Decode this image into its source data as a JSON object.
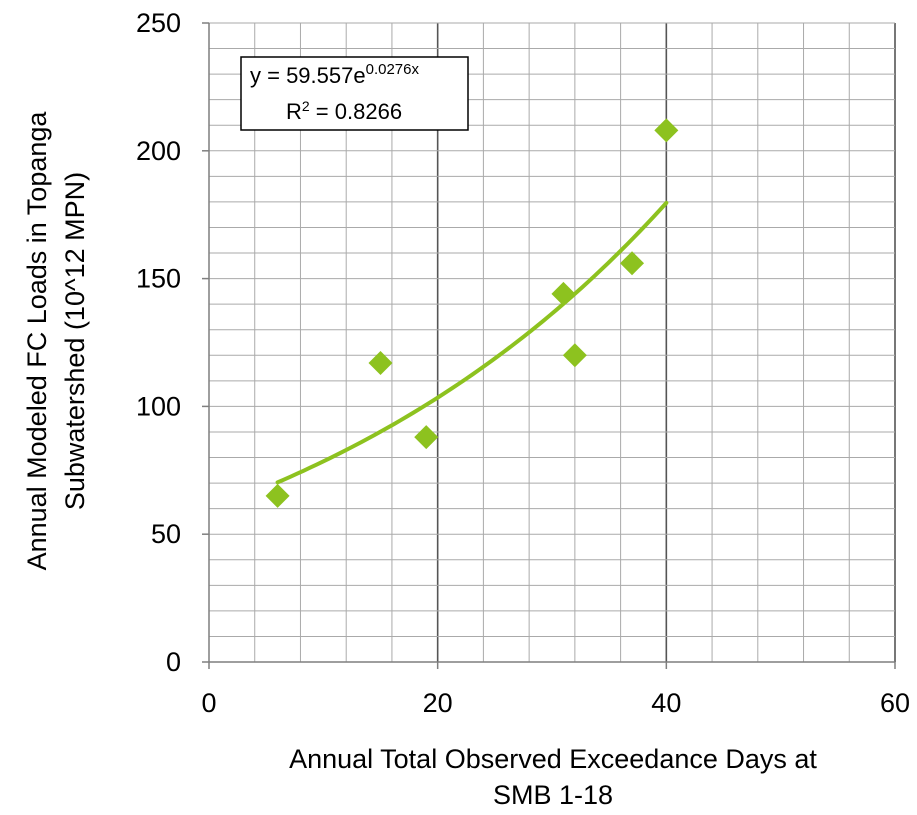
{
  "chart_data": {
    "type": "scatter",
    "title": "",
    "xlabel": [
      "Annual Total Observed Exceedance Days at",
      "SMB 1-18"
    ],
    "ylabel": [
      "Annual Modeled FC Loads in Topanga",
      "Subwatershed (10^12  MPN)"
    ],
    "xlim": [
      0,
      60
    ],
    "ylim": [
      0,
      250
    ],
    "x_ticks": [
      "0",
      "20",
      "40",
      "60"
    ],
    "y_ticks": [
      "0",
      "50",
      "100",
      "150",
      "200",
      "250"
    ],
    "x_minor_step": 4,
    "y_minor_step": 10,
    "grid": true,
    "legend": "none",
    "series": [
      {
        "marker": "diamond",
        "x": [
          6,
          15,
          19,
          31,
          32,
          37,
          40
        ],
        "y": [
          65,
          117,
          88,
          144,
          120,
          156,
          208
        ]
      }
    ],
    "trendline": {
      "type": "exponential",
      "a": 59.557,
      "b": 0.0276,
      "x_range": [
        6,
        40
      ]
    },
    "annotation": {
      "equation_prefix": "y = 59.557e",
      "equation_exponent": "0.0276x",
      "r2_prefix": "R",
      "r2_sup": "2",
      "r2_value": " = 0.8266"
    },
    "colors": {
      "marker": "#8dc21f",
      "trendline": "#8dc21f",
      "grid": "#aaaaaa",
      "axis": "#7f7f7f"
    }
  }
}
